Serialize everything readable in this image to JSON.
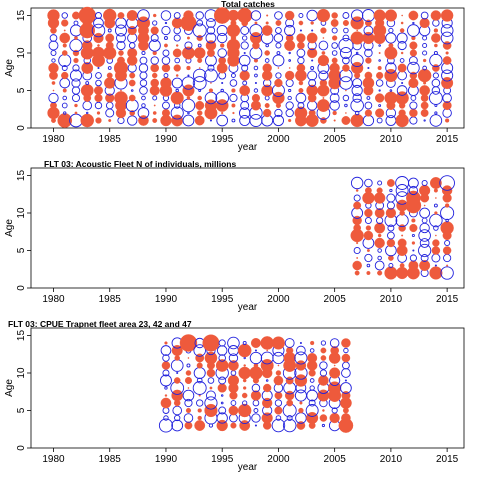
{
  "page_title": "Total catches; FLT 03: Acoustic Fleet N of individuals, millions; FLT 03: CPUE Trapnet fleet area 23, 42 and 47",
  "colors": {
    "positive": "#ee5a3c",
    "negative": "#2222dd",
    "axis": "#000000"
  },
  "chart_data": [
    {
      "type": "scatter",
      "title": "Total catches",
      "xlabel": "year",
      "ylabel": "Age",
      "xlim": [
        1978,
        2016.5
      ],
      "ylim": [
        0,
        16
      ],
      "x_ticks": [
        1980,
        1985,
        1990,
        1995,
        2000,
        2005,
        2010,
        2015
      ],
      "y_ticks": [
        0,
        5,
        10,
        15
      ],
      "years": [
        1980,
        2015
      ],
      "ages": [
        1,
        15
      ],
      "pattern_seed": 3,
      "series": [
        {
          "name": "",
          "values": [
            {
              "x": 1983,
              "y": 15,
              "v": 1.0
            },
            {
              "x": 1983,
              "y": 13,
              "v": 0.8
            },
            {
              "x": 1992,
              "y": 14,
              "v": 0.85
            },
            {
              "x": 1993,
              "y": 13,
              "v": -0.6
            },
            {
              "x": 1995,
              "y": 15,
              "v": 0.9
            },
            {
              "x": 1997,
              "y": 15,
              "v": 0.75
            },
            {
              "x": 2006,
              "y": 11,
              "v": -0.7
            },
            {
              "x": 1986,
              "y": 8,
              "v": 0.65
            },
            {
              "x": 1981,
              "y": 1,
              "v": 0.7
            }
          ]
        }
      ]
    },
    {
      "type": "scatter",
      "title": "FLT 03: Acoustic Fleet   N of individuals, millions",
      "xlabel": "year",
      "ylabel": "Age",
      "xlim": [
        1978,
        2016.5
      ],
      "ylim": [
        0,
        16
      ],
      "x_ticks": [
        1980,
        1985,
        1990,
        1995,
        2000,
        2005,
        2010,
        2015
      ],
      "y_ticks": [
        0,
        5,
        10,
        15
      ],
      "years": [
        2007,
        2015
      ],
      "ages": [
        2,
        14
      ],
      "pattern_seed": 7,
      "series": [
        {
          "name": "",
          "values": [
            {
              "x": 2015,
              "y": 14,
              "v": -0.75
            },
            {
              "x": 2014,
              "y": 14,
              "v": 0.45
            },
            {
              "x": 2012,
              "y": 11,
              "v": 0.8
            },
            {
              "x": 2012,
              "y": 12,
              "v": 0.7
            },
            {
              "x": 2015,
              "y": 10,
              "v": -0.6
            }
          ]
        }
      ]
    },
    {
      "type": "scatter",
      "title": "FLT 03: CPUE Trapnet fleet area 23, 42 and 47",
      "xlabel": "year",
      "ylabel": "Age",
      "xlim": [
        1978,
        2016.5
      ],
      "ylim": [
        0,
        16
      ],
      "x_ticks": [
        1980,
        1985,
        1990,
        1995,
        2000,
        2005,
        2010,
        2015
      ],
      "y_ticks": [
        0,
        5,
        10,
        15
      ],
      "years": [
        1990,
        2006
      ],
      "ages": [
        3,
        14
      ],
      "pattern_seed": 11,
      "series": [
        {
          "name": "",
          "values": [
            {
              "x": 1992,
              "y": 14,
              "v": 1.0
            },
            {
              "x": 1994,
              "y": 14,
              "v": 0.95
            },
            {
              "x": 1990,
              "y": 3,
              "v": -0.6
            },
            {
              "x": 2006,
              "y": 3,
              "v": 0.7
            },
            {
              "x": 1999,
              "y": 11,
              "v": 0.55
            }
          ]
        }
      ]
    }
  ]
}
